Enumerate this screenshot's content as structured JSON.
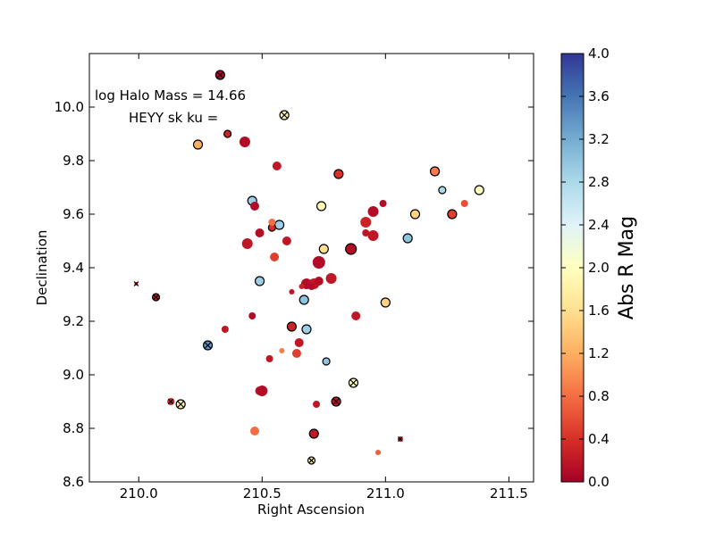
{
  "chart_data": {
    "type": "scatter",
    "title": "",
    "xlabel": "Right Ascension",
    "ylabel": "Declination",
    "xlim": [
      209.8,
      211.6
    ],
    "ylim": [
      8.6,
      10.2
    ],
    "xticks": [
      210.0,
      210.5,
      211.0,
      211.5
    ],
    "xtick_labels": [
      "210.0",
      "210.5",
      "211.0",
      "211.5"
    ],
    "yticks": [
      8.6,
      8.8,
      9.0,
      9.2,
      9.4,
      9.6,
      9.8,
      10.0
    ],
    "ytick_labels": [
      "8.6",
      "8.8",
      "9.0",
      "9.2",
      "9.4",
      "9.6",
      "9.8",
      "10.0"
    ],
    "grid": false,
    "annotations": [
      "log Halo Mass = 14.66",
      "HEYY sk ku ="
    ],
    "colorbar": {
      "label": "Abs R Mag",
      "range": [
        0.0,
        4.0
      ],
      "ticks": [
        0.0,
        0.4,
        0.8,
        1.2,
        1.6,
        2.0,
        2.4,
        2.8,
        3.2,
        3.6,
        4.0
      ],
      "tick_labels": [
        "0.0",
        "0.4",
        "0.8",
        "1.2",
        "1.6",
        "2.0",
        "2.4",
        "2.8",
        "3.2",
        "3.6",
        "4.0"
      ],
      "colormap": "RdYlBu"
    },
    "points": [
      {
        "x": 210.33,
        "y": 10.12,
        "c": 0.1,
        "s": 5,
        "ring": true,
        "cross": true
      },
      {
        "x": 210.59,
        "y": 9.97,
        "c": 1.9,
        "s": 5,
        "ring": true,
        "cross": true
      },
      {
        "x": 210.24,
        "y": 9.86,
        "c": 1.2,
        "s": 5,
        "ring": true,
        "cross": false
      },
      {
        "x": 210.36,
        "y": 9.9,
        "c": 0.3,
        "s": 4,
        "ring": true,
        "cross": false
      },
      {
        "x": 210.43,
        "y": 9.87,
        "c": 0.1,
        "s": 6,
        "ring": false,
        "cross": false
      },
      {
        "x": 210.56,
        "y": 9.78,
        "c": 0.2,
        "s": 5,
        "ring": false,
        "cross": false
      },
      {
        "x": 210.81,
        "y": 9.75,
        "c": 0.4,
        "s": 5,
        "ring": true,
        "cross": false
      },
      {
        "x": 211.2,
        "y": 9.76,
        "c": 0.9,
        "s": 5,
        "ring": true,
        "cross": false
      },
      {
        "x": 211.23,
        "y": 9.69,
        "c": 2.8,
        "s": 4,
        "ring": true,
        "cross": false
      },
      {
        "x": 211.38,
        "y": 9.69,
        "c": 2.0,
        "s": 5,
        "ring": true,
        "cross": false
      },
      {
        "x": 211.32,
        "y": 9.64,
        "c": 0.6,
        "s": 4,
        "ring": false,
        "cross": false
      },
      {
        "x": 210.46,
        "y": 9.65,
        "c": 2.9,
        "s": 5,
        "ring": true,
        "cross": false
      },
      {
        "x": 210.47,
        "y": 9.63,
        "c": 0.1,
        "s": 5,
        "ring": false,
        "cross": false
      },
      {
        "x": 210.74,
        "y": 9.63,
        "c": 1.9,
        "s": 5,
        "ring": true,
        "cross": false
      },
      {
        "x": 211.12,
        "y": 9.6,
        "c": 1.5,
        "s": 5,
        "ring": true,
        "cross": false
      },
      {
        "x": 211.27,
        "y": 9.6,
        "c": 0.5,
        "s": 5,
        "ring": true,
        "cross": false
      },
      {
        "x": 210.99,
        "y": 9.64,
        "c": 0.1,
        "s": 4,
        "ring": false,
        "cross": false
      },
      {
        "x": 210.95,
        "y": 9.61,
        "c": 0.1,
        "s": 6,
        "ring": false,
        "cross": false
      },
      {
        "x": 210.57,
        "y": 9.56,
        "c": 2.9,
        "s": 5,
        "ring": true,
        "cross": false
      },
      {
        "x": 210.54,
        "y": 9.55,
        "c": 0.4,
        "s": 4,
        "ring": true,
        "cross": false
      },
      {
        "x": 210.54,
        "y": 9.57,
        "c": 0.8,
        "s": 4,
        "ring": false,
        "cross": false
      },
      {
        "x": 210.49,
        "y": 9.53,
        "c": 0.1,
        "s": 5,
        "ring": false,
        "cross": false
      },
      {
        "x": 210.92,
        "y": 9.57,
        "c": 0.3,
        "s": 6,
        "ring": false,
        "cross": false
      },
      {
        "x": 210.92,
        "y": 9.53,
        "c": 0.2,
        "s": 4,
        "ring": false,
        "cross": false
      },
      {
        "x": 210.95,
        "y": 9.52,
        "c": 0.2,
        "s": 6,
        "ring": false,
        "cross": false
      },
      {
        "x": 211.09,
        "y": 9.51,
        "c": 3.0,
        "s": 5,
        "ring": true,
        "cross": false
      },
      {
        "x": 210.44,
        "y": 9.49,
        "c": 0.2,
        "s": 6,
        "ring": false,
        "cross": false
      },
      {
        "x": 210.6,
        "y": 9.5,
        "c": 0.2,
        "s": 5,
        "ring": false,
        "cross": false
      },
      {
        "x": 210.75,
        "y": 9.47,
        "c": 1.6,
        "s": 5,
        "ring": true,
        "cross": false
      },
      {
        "x": 210.86,
        "y": 9.47,
        "c": 0.1,
        "s": 6,
        "ring": true,
        "cross": false
      },
      {
        "x": 210.55,
        "y": 9.44,
        "c": 0.5,
        "s": 5,
        "ring": false,
        "cross": false
      },
      {
        "x": 210.73,
        "y": 9.42,
        "c": 0.1,
        "s": 7,
        "ring": false,
        "cross": false
      },
      {
        "x": 210.49,
        "y": 9.35,
        "c": 2.9,
        "s": 5,
        "ring": true,
        "cross": false
      },
      {
        "x": 210.78,
        "y": 9.36,
        "c": 0.2,
        "s": 6,
        "ring": false,
        "cross": false
      },
      {
        "x": 210.68,
        "y": 9.34,
        "c": 0.1,
        "s": 6,
        "ring": false,
        "cross": false
      },
      {
        "x": 210.71,
        "y": 9.34,
        "c": 0.2,
        "s": 6,
        "ring": false,
        "cross": false
      },
      {
        "x": 210.73,
        "y": 9.35,
        "c": 0.1,
        "s": 5,
        "ring": false,
        "cross": false
      },
      {
        "x": 210.66,
        "y": 9.33,
        "c": 0.3,
        "s": 3,
        "ring": false,
        "cross": false
      },
      {
        "x": 210.7,
        "y": 9.33,
        "c": 0.1,
        "s": 4,
        "ring": false,
        "cross": false
      },
      {
        "x": 210.62,
        "y": 9.31,
        "c": 0.2,
        "s": 3,
        "ring": false,
        "cross": false
      },
      {
        "x": 209.99,
        "y": 9.34,
        "c": 0.4,
        "s": 2,
        "ring": false,
        "cross": true
      },
      {
        "x": 210.07,
        "y": 9.29,
        "c": 0.2,
        "s": 4,
        "ring": true,
        "cross": true
      },
      {
        "x": 210.67,
        "y": 9.28,
        "c": 3.0,
        "s": 5,
        "ring": true,
        "cross": false
      },
      {
        "x": 211.0,
        "y": 9.27,
        "c": 1.5,
        "s": 5,
        "ring": true,
        "cross": false
      },
      {
        "x": 210.46,
        "y": 9.22,
        "c": 0.1,
        "s": 4,
        "ring": false,
        "cross": false
      },
      {
        "x": 210.88,
        "y": 9.22,
        "c": 0.2,
        "s": 5,
        "ring": false,
        "cross": false
      },
      {
        "x": 210.62,
        "y": 9.18,
        "c": 0.3,
        "s": 5,
        "ring": true,
        "cross": false
      },
      {
        "x": 210.68,
        "y": 9.17,
        "c": 2.9,
        "s": 5,
        "ring": true,
        "cross": false
      },
      {
        "x": 210.35,
        "y": 9.17,
        "c": 0.2,
        "s": 4,
        "ring": false,
        "cross": false
      },
      {
        "x": 210.65,
        "y": 9.12,
        "c": 0.2,
        "s": 5,
        "ring": false,
        "cross": false
      },
      {
        "x": 210.28,
        "y": 9.11,
        "c": 3.4,
        "s": 5,
        "ring": true,
        "cross": true
      },
      {
        "x": 210.58,
        "y": 9.09,
        "c": 0.9,
        "s": 3,
        "ring": false,
        "cross": false
      },
      {
        "x": 210.64,
        "y": 9.08,
        "c": 0.5,
        "s": 5,
        "ring": false,
        "cross": false
      },
      {
        "x": 210.53,
        "y": 9.06,
        "c": 0.2,
        "s": 4,
        "ring": false,
        "cross": false
      },
      {
        "x": 210.76,
        "y": 9.05,
        "c": 3.0,
        "s": 4,
        "ring": true,
        "cross": false
      },
      {
        "x": 210.87,
        "y": 8.97,
        "c": 2.0,
        "s": 5,
        "ring": true,
        "cross": true
      },
      {
        "x": 210.49,
        "y": 8.94,
        "c": 0.2,
        "s": 5,
        "ring": false,
        "cross": false
      },
      {
        "x": 210.5,
        "y": 8.94,
        "c": 0.1,
        "s": 6,
        "ring": false,
        "cross": false
      },
      {
        "x": 210.13,
        "y": 8.9,
        "c": 0.3,
        "s": 4,
        "ring": false,
        "cross": true
      },
      {
        "x": 210.17,
        "y": 8.89,
        "c": 1.8,
        "s": 5,
        "ring": true,
        "cross": true
      },
      {
        "x": 210.72,
        "y": 8.89,
        "c": 0.2,
        "s": 4,
        "ring": false,
        "cross": false
      },
      {
        "x": 210.8,
        "y": 8.9,
        "c": 0.2,
        "s": 5,
        "ring": true,
        "cross": true
      },
      {
        "x": 210.47,
        "y": 8.79,
        "c": 0.8,
        "s": 5,
        "ring": false,
        "cross": false
      },
      {
        "x": 210.71,
        "y": 8.78,
        "c": 0.2,
        "s": 5,
        "ring": true,
        "cross": false
      },
      {
        "x": 211.06,
        "y": 8.76,
        "c": 0.2,
        "s": 3,
        "ring": false,
        "cross": true
      },
      {
        "x": 210.97,
        "y": 8.71,
        "c": 0.7,
        "s": 3,
        "ring": false,
        "cross": false
      },
      {
        "x": 210.7,
        "y": 8.68,
        "c": 1.8,
        "s": 4,
        "ring": true,
        "cross": true
      }
    ]
  }
}
